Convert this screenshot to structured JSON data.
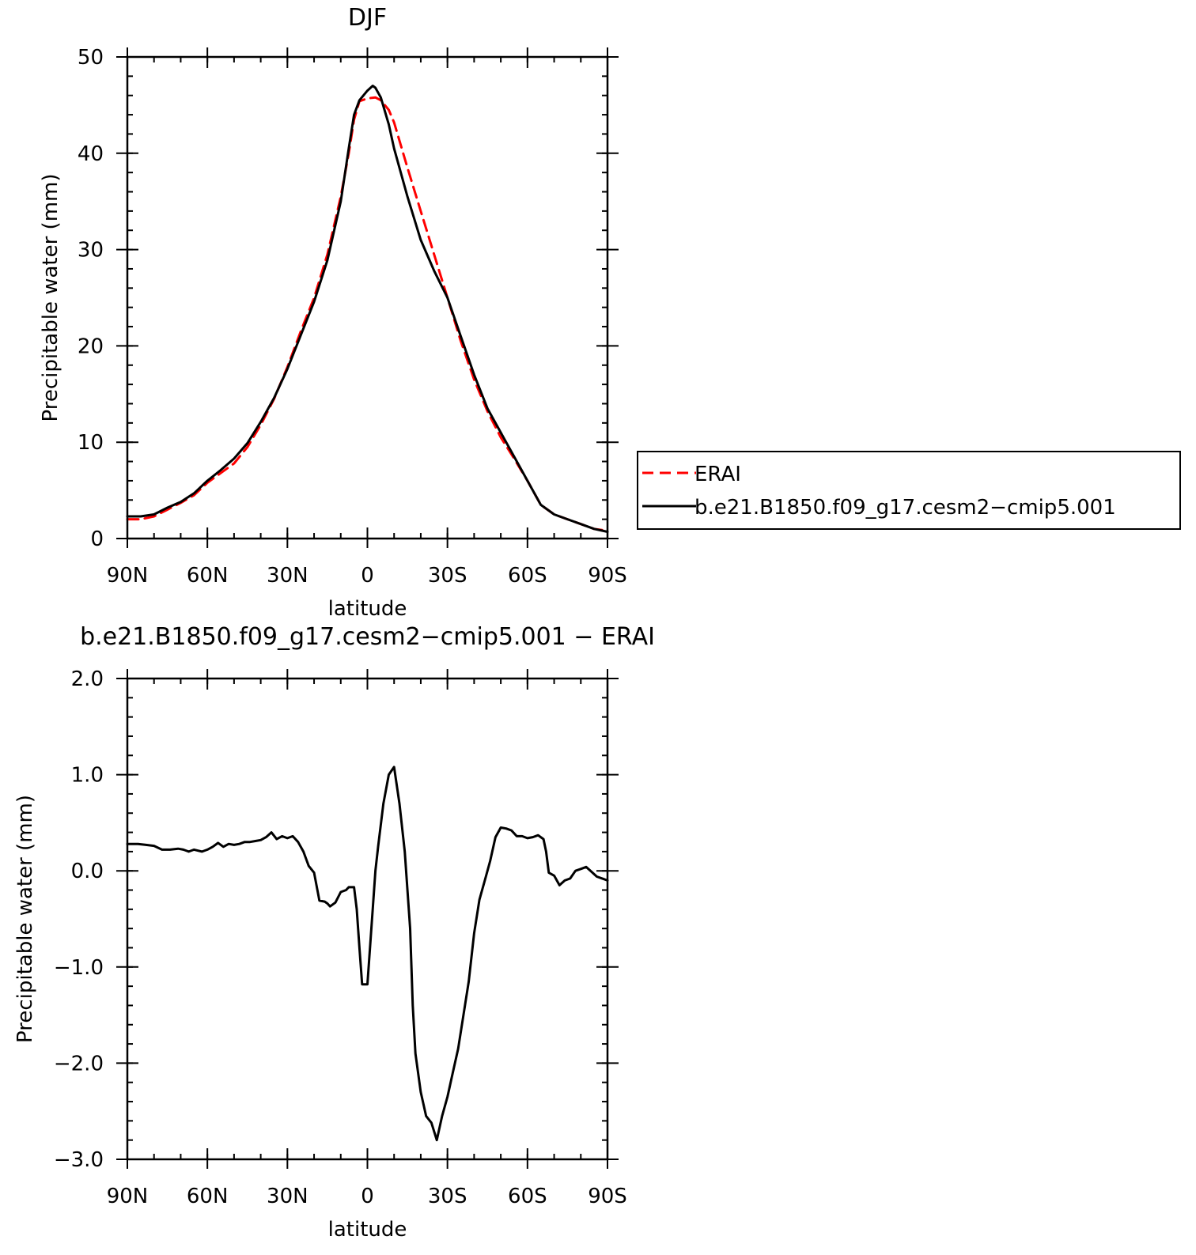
{
  "chart_data": [
    {
      "type": "line",
      "title": "DJF",
      "xlabel": "latitude",
      "ylabel": "Precipitable water (mm)",
      "xlim": [
        90,
        -90
      ],
      "ylim": [
        0,
        50
      ],
      "x_tick_values": [
        90,
        60,
        30,
        0,
        -30,
        -60,
        -90
      ],
      "x_tick_labels": [
        "90N",
        "60N",
        "30N",
        "0",
        "30S",
        "60S",
        "90S"
      ],
      "y_tick_values": [
        0,
        10,
        20,
        30,
        40,
        50
      ],
      "y_tick_labels": [
        "0",
        "10",
        "20",
        "30",
        "40",
        "50"
      ],
      "grid": false,
      "legend_position": "right-of-plot",
      "series": [
        {
          "name": "ERAI",
          "color": "#ff0000",
          "dash": "dashed",
          "x": [
            90,
            85,
            80,
            75,
            70,
            65,
            60,
            55,
            50,
            45,
            40,
            35,
            30,
            25,
            20,
            15,
            10,
            7,
            5,
            3,
            0,
            -3,
            -5,
            -8,
            -10,
            -15,
            -20,
            -25,
            -30,
            -35,
            -40,
            -45,
            -50,
            -55,
            -60,
            -65,
            -70,
            -75,
            -80,
            -85,
            -90
          ],
          "y": [
            2.0,
            2.0,
            2.3,
            3.0,
            3.7,
            4.5,
            5.8,
            6.8,
            7.8,
            9.5,
            11.8,
            14.5,
            17.8,
            21.5,
            25.0,
            29.5,
            35.5,
            40.0,
            43.5,
            45.4,
            45.7,
            45.8,
            45.5,
            44.5,
            43.2,
            38.5,
            34.0,
            29.5,
            25.0,
            20.5,
            16.5,
            13.2,
            10.5,
            8.3,
            6.0,
            3.5,
            2.5,
            2.0,
            1.5,
            1.0,
            0.8
          ]
        },
        {
          "name": "b.e21.B1850.f09_g17.cesm2−cmip5.001",
          "color": "#000000",
          "dash": "solid",
          "x": [
            90,
            85,
            80,
            75,
            70,
            65,
            60,
            55,
            50,
            45,
            40,
            35,
            30,
            25,
            20,
            15,
            10,
            7,
            5,
            3,
            0,
            -2,
            -3,
            -5,
            -8,
            -10,
            -15,
            -20,
            -25,
            -30,
            -35,
            -40,
            -45,
            -50,
            -55,
            -60,
            -65,
            -70,
            -75,
            -80,
            -85,
            -90
          ],
          "y": [
            2.3,
            2.3,
            2.5,
            3.2,
            3.8,
            4.7,
            6.0,
            7.1,
            8.3,
            9.9,
            12.1,
            14.6,
            17.6,
            21.1,
            24.6,
            28.9,
            35.0,
            40.5,
            44.0,
            45.5,
            46.5,
            47.0,
            46.8,
            45.8,
            43.0,
            40.5,
            35.5,
            31.0,
            27.8,
            25.0,
            21.0,
            17.0,
            13.5,
            11.0,
            8.5,
            6.0,
            3.5,
            2.5,
            2.0,
            1.5,
            1.0,
            0.7
          ]
        }
      ]
    },
    {
      "type": "line",
      "title": "b.e21.B1850.f09_g17.cesm2−cmip5.001  −  ERAI",
      "xlabel": "latitude",
      "ylabel": "Precipitable water (mm)",
      "xlim": [
        90,
        -90
      ],
      "ylim": [
        -3.0,
        2.0
      ],
      "x_tick_values": [
        90,
        60,
        30,
        0,
        -30,
        -60,
        -90
      ],
      "x_tick_labels": [
        "90N",
        "60N",
        "30N",
        "0",
        "30S",
        "60S",
        "90S"
      ],
      "y_tick_values": [
        2.0,
        1.0,
        0.0,
        -1.0,
        -2.0,
        -3.0
      ],
      "y_tick_labels": [
        "2.0",
        "1.0",
        "0.0",
        "−1.0",
        "−2.0",
        "−3.0"
      ],
      "grid": false,
      "series": [
        {
          "color": "#000000",
          "dash": "solid",
          "x": [
            90,
            86,
            83,
            80,
            77,
            74,
            71,
            69,
            67,
            65,
            62,
            60,
            58,
            56,
            54,
            52,
            50,
            48,
            46,
            44,
            42,
            40,
            38,
            36,
            34,
            32,
            30,
            28,
            26,
            24,
            22,
            20,
            18,
            16,
            15,
            14,
            12,
            10,
            8,
            7,
            5,
            4,
            3,
            2,
            0,
            -2,
            -3,
            -4,
            -6,
            -8,
            -10,
            -12,
            -14,
            -16,
            -17,
            -18,
            -20,
            -22,
            -24,
            -26,
            -28,
            -30,
            -32,
            -34,
            -36,
            -38,
            -40,
            -42,
            -44,
            -46,
            -48,
            -50,
            -52,
            -54,
            -56,
            -58,
            -60,
            -62,
            -64,
            -66,
            -67,
            -68,
            -70,
            -72,
            -74,
            -76,
            -78,
            -80,
            -82,
            -84,
            -86,
            -88,
            -90
          ],
          "y": [
            0.28,
            0.28,
            0.27,
            0.26,
            0.22,
            0.22,
            0.23,
            0.22,
            0.2,
            0.22,
            0.2,
            0.22,
            0.25,
            0.29,
            0.25,
            0.28,
            0.27,
            0.28,
            0.3,
            0.3,
            0.31,
            0.32,
            0.35,
            0.4,
            0.33,
            0.36,
            0.34,
            0.36,
            0.3,
            0.2,
            0.05,
            -0.02,
            -0.31,
            -0.32,
            -0.34,
            -0.37,
            -0.33,
            -0.22,
            -0.2,
            -0.17,
            -0.17,
            -0.4,
            -0.8,
            -1.18,
            -1.18,
            -0.4,
            0.0,
            0.25,
            0.7,
            1.0,
            1.08,
            0.7,
            0.2,
            -0.6,
            -1.4,
            -1.9,
            -2.3,
            -2.55,
            -2.62,
            -2.8,
            -2.55,
            -2.35,
            -2.1,
            -1.85,
            -1.5,
            -1.15,
            -0.65,
            -0.3,
            -0.1,
            0.1,
            0.35,
            0.45,
            0.44,
            0.42,
            0.36,
            0.36,
            0.34,
            0.35,
            0.37,
            0.33,
            0.2,
            -0.02,
            -0.05,
            -0.15,
            -0.1,
            -0.08,
            0.0,
            0.02,
            0.04,
            -0.01,
            -0.06,
            -0.08,
            -0.1
          ]
        }
      ]
    }
  ]
}
